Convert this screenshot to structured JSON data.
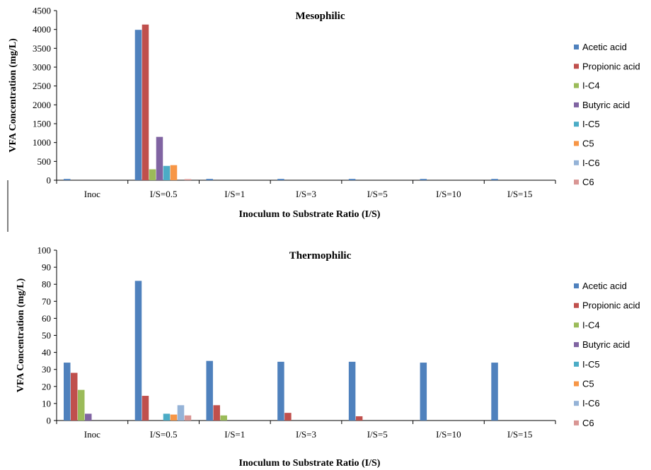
{
  "chart_data": [
    {
      "type": "bar",
      "title": "Mesophilic",
      "xlabel": "Inoculum to Substrate Ratio (I/S)",
      "ylabel": "VFA Concentration (mg/L)",
      "ylim": [
        0,
        4500
      ],
      "yticks": [
        0,
        500,
        1000,
        1500,
        2000,
        2500,
        3000,
        3500,
        4000,
        4500
      ],
      "grid": false,
      "legend": "right",
      "categories": [
        "Inoc",
        "I/S=0.5",
        "I/S=1",
        "I/S=3",
        "I/S=5",
        "I/S=10",
        "I/S=15"
      ],
      "series": [
        {
          "name": "Acetic acid",
          "color": "#4f81bd",
          "values": [
            34,
            3990,
            35,
            35,
            35,
            34,
            34
          ]
        },
        {
          "name": "Propionic acid",
          "color": "#c0504d",
          "values": [
            0,
            4130,
            0,
            0,
            0,
            0,
            0
          ]
        },
        {
          "name": "I-C4",
          "color": "#9bbb59",
          "values": [
            0,
            290,
            0,
            0,
            0,
            0,
            0
          ]
        },
        {
          "name": "Butyric acid",
          "color": "#8064a2",
          "values": [
            0,
            1150,
            0,
            0,
            0,
            0,
            0
          ]
        },
        {
          "name": "I-C5",
          "color": "#4bacc6",
          "values": [
            0,
            380,
            0,
            0,
            0,
            0,
            0
          ]
        },
        {
          "name": "C5",
          "color": "#f79646",
          "values": [
            0,
            400,
            0,
            0,
            0,
            0,
            0
          ]
        },
        {
          "name": "I-C6",
          "color": "#95b3d7",
          "values": [
            0,
            0,
            0,
            0,
            0,
            0,
            0
          ]
        },
        {
          "name": "C6",
          "color": "#d99694",
          "values": [
            0,
            30,
            0,
            0,
            0,
            0,
            0
          ]
        }
      ]
    },
    {
      "type": "bar",
      "title": "Thermophilic",
      "xlabel": "Inoculum to Substrate Ratio (I/S)",
      "ylabel": "VFA Concentration (mg/L)",
      "ylim": [
        0,
        100
      ],
      "yticks": [
        0,
        10,
        20,
        30,
        40,
        50,
        60,
        70,
        80,
        90,
        100
      ],
      "grid": false,
      "legend": "right",
      "categories": [
        "Inoc",
        "I/S=0.5",
        "I/S=1",
        "I/S=3",
        "I/S=5",
        "I/S=10",
        "I/S=15"
      ],
      "series": [
        {
          "name": "Acetic acid",
          "color": "#4f81bd",
          "values": [
            34,
            82,
            35,
            34.5,
            34.5,
            34,
            34
          ]
        },
        {
          "name": "Propionic acid",
          "color": "#c0504d",
          "values": [
            28,
            14.5,
            9,
            4.5,
            2.5,
            0,
            0
          ]
        },
        {
          "name": "I-C4",
          "color": "#9bbb59",
          "values": [
            18,
            0,
            3,
            0,
            0,
            0,
            0
          ]
        },
        {
          "name": "Butyric acid",
          "color": "#8064a2",
          "values": [
            4,
            0,
            0,
            0,
            0,
            0,
            0
          ]
        },
        {
          "name": "I-C5",
          "color": "#4bacc6",
          "values": [
            0,
            4,
            0,
            0,
            0,
            0,
            0
          ]
        },
        {
          "name": "C5",
          "color": "#f79646",
          "values": [
            0,
            3.5,
            0,
            0,
            0,
            0,
            0
          ]
        },
        {
          "name": "I-C6",
          "color": "#95b3d7",
          "values": [
            0,
            9,
            0,
            0,
            0,
            0,
            0
          ]
        },
        {
          "name": "C6",
          "color": "#d99694",
          "values": [
            0,
            3,
            0,
            0,
            0,
            0,
            0
          ]
        }
      ]
    }
  ]
}
